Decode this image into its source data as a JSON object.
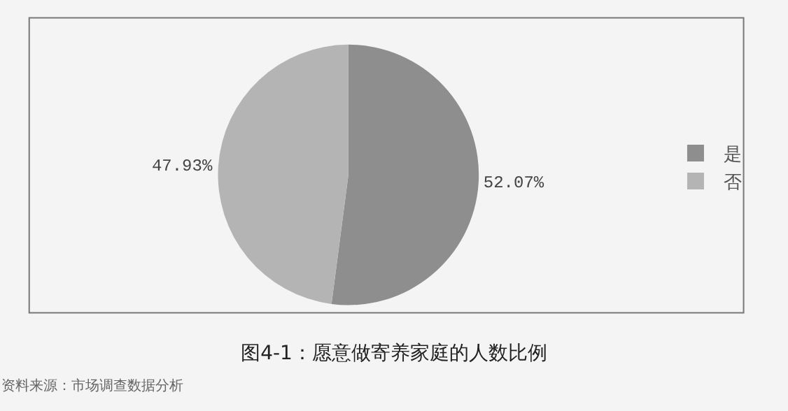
{
  "chart_data": {
    "type": "pie",
    "title": "图4-1：愿意做寄养家庭的人数比例",
    "categories": [
      "是",
      "否"
    ],
    "values": [
      52.07,
      47.93
    ],
    "colors": [
      "#8e8e8e",
      "#b4b4b4"
    ],
    "value_labels": [
      "52.07%",
      "47.93%"
    ],
    "legend": "right",
    "annotations": [
      "资料来源：市场调查数据分析"
    ]
  }
}
